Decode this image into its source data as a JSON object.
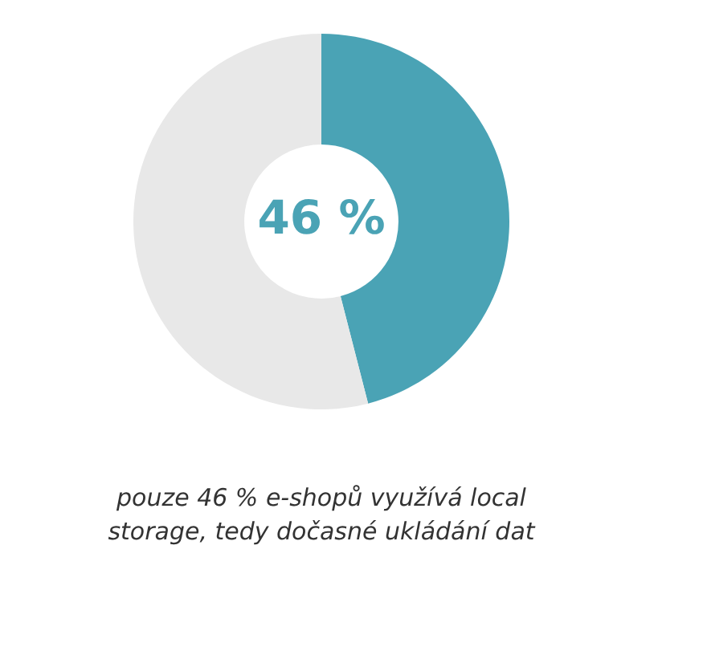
{
  "chart_data": {
    "type": "donut",
    "categories": [
      null,
      null
    ],
    "values": [
      46,
      54
    ],
    "colors": [
      "#4aa3b5",
      "#e8e8e8"
    ],
    "value_labels": [
      "46 %",
      null
    ],
    "legend": false,
    "annotations": [
      "pouze 46 % e-shopů využívá local storage, tedy dočasné ukládání dat"
    ]
  }
}
